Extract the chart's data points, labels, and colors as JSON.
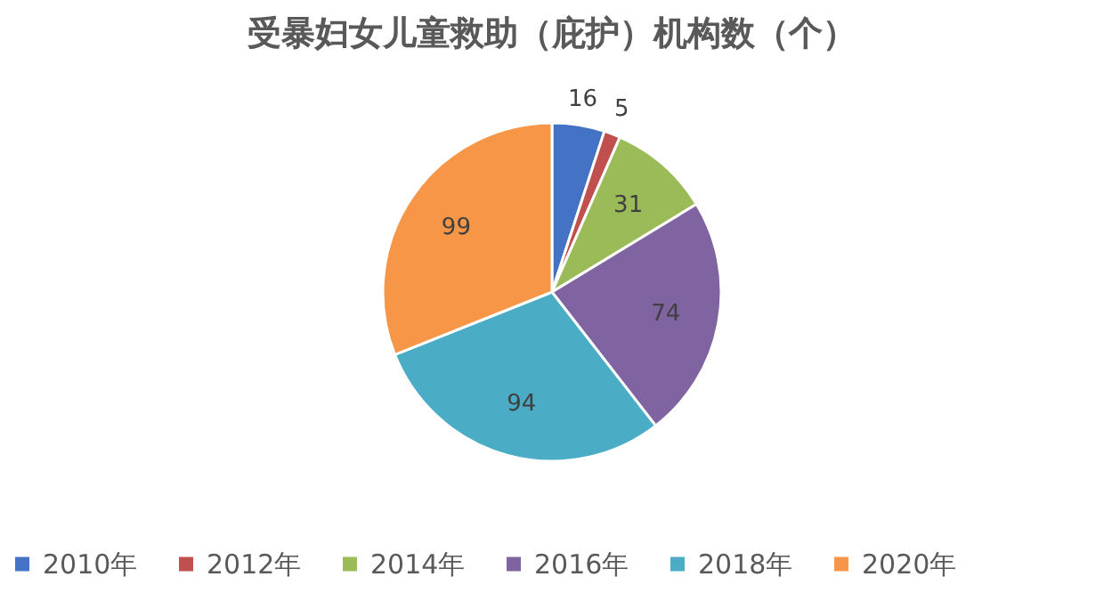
{
  "chart_data": {
    "type": "pie",
    "title": "受暴妇女儿童救助（庇护）机构数（个）",
    "categories": [
      "2010年",
      "2012年",
      "2014年",
      "2016年",
      "2018年",
      "2020年"
    ],
    "values": [
      16,
      5,
      31,
      74,
      94,
      99
    ],
    "colors": [
      "#4472c4",
      "#c0504d",
      "#9bbb59",
      "#8064a2",
      "#4bacc6",
      "#f79646"
    ],
    "data_labels": true,
    "legend": "bottom"
  }
}
